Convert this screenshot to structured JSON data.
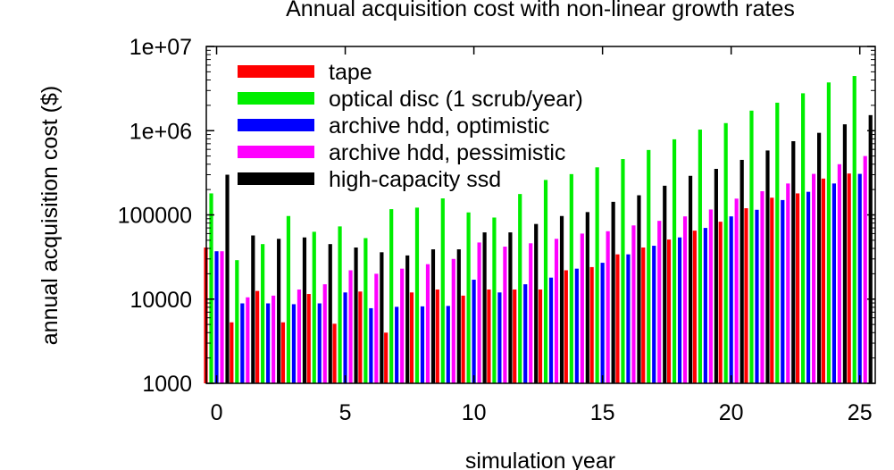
{
  "chart_data": {
    "type": "bar",
    "title": "Annual acquisition cost with non-linear growth rates",
    "xlabel": "simulation year",
    "ylabel": "annual acquisition cost ($)",
    "y_scale": "log",
    "ylim": [
      1000,
      10000000
    ],
    "xlim": [
      -0.4,
      25.6
    ],
    "x_ticks": [
      0,
      5,
      10,
      15,
      20,
      25
    ],
    "x_tick_labels": [
      "0",
      "5",
      "10",
      "15",
      "20",
      "25"
    ],
    "y_ticks": [
      1000,
      10000,
      100000,
      1000000,
      10000000
    ],
    "y_tick_labels": [
      "1000",
      "10000",
      "100000",
      "1e+06",
      "1e+07"
    ],
    "legend_position": "top-left",
    "grid": false,
    "x": [
      0,
      1,
      2,
      3,
      4,
      5,
      6,
      7,
      8,
      9,
      10,
      11,
      12,
      13,
      14,
      15,
      16,
      17,
      18,
      19,
      20,
      21,
      22,
      23,
      24,
      25
    ],
    "series": [
      {
        "name": "tape",
        "color": "#ff0000",
        "values": [
          41000,
          5300,
          12500,
          5300,
          11500,
          5100,
          12300,
          4000,
          12000,
          13000,
          11000,
          13000,
          13000,
          13000,
          22000,
          24000,
          34000,
          41000,
          51000,
          65000,
          83000,
          120000,
          160000,
          180000,
          270000,
          310000
        ]
      },
      {
        "name": "optical disc (1 scrub/year)",
        "color": "#00ee00",
        "values": [
          180000,
          29000,
          45000,
          97000,
          63000,
          73000,
          53000,
          117000,
          122000,
          157000,
          107000,
          93000,
          177000,
          260000,
          305000,
          367000,
          460000,
          590000,
          790000,
          1030000,
          1230000,
          1730000,
          2150000,
          2780000,
          3740000,
          4460000
        ]
      },
      {
        "name": "archive hdd, optimistic",
        "color": "#0000ff",
        "values": [
          37000,
          8900,
          8900,
          8700,
          8900,
          12000,
          7800,
          8100,
          8200,
          8300,
          17000,
          12000,
          15000,
          18000,
          23000,
          27000,
          34000,
          43000,
          54000,
          70000,
          96000,
          115000,
          150000,
          188000,
          236000,
          307000
        ]
      },
      {
        "name": "archive hdd, pessimistic",
        "color": "#ff00ff",
        "values": [
          37000,
          10500,
          11000,
          13000,
          15000,
          22000,
          20000,
          23000,
          26000,
          30000,
          47000,
          42000,
          46000,
          52000,
          60000,
          64000,
          75000,
          85000,
          96000,
          116000,
          156000,
          191000,
          236000,
          307000,
          400000,
          500000
        ]
      },
      {
        "name": "high-capacity ssd",
        "color": "#000000",
        "values": [
          300000,
          57000,
          52000,
          54000,
          45000,
          41000,
          36000,
          33000,
          39000,
          39000,
          62000,
          62000,
          78000,
          97000,
          108000,
          143000,
          171000,
          222000,
          291000,
          352000,
          450000,
          582000,
          750000,
          943000,
          1190000,
          1530000
        ]
      }
    ]
  }
}
